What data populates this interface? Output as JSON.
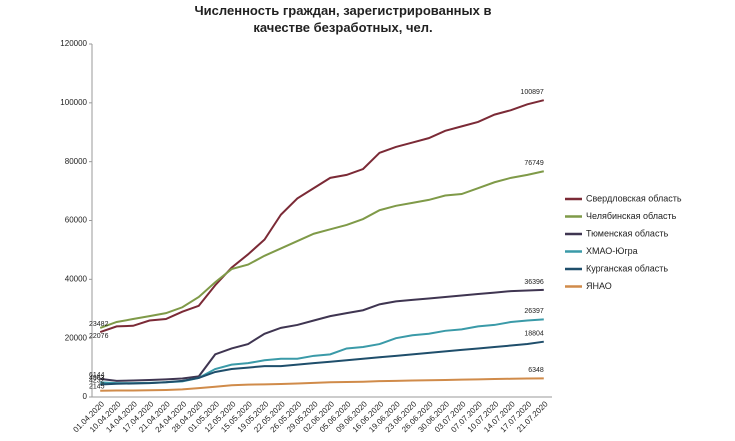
{
  "chart_data": {
    "type": "line",
    "title": "Численность граждан, зарегистрированных в качестве безработных, чел.",
    "categories": [
      "01.04.2020",
      "10.04.2020",
      "14.04.2020",
      "17.04.2020",
      "21.04.2020",
      "24.04.2020",
      "28.04.2020",
      "01.05.2020",
      "12.05.2020",
      "15.05.2020",
      "19.05.2020",
      "22.05.2020",
      "26.05.2020",
      "29.05.2020",
      "02.06.2020",
      "05.06.2020",
      "09.06.2020",
      "16.06.2020",
      "19.06.2020",
      "23.06.2020",
      "26.06.2020",
      "30.06.2020",
      "03.07.2020",
      "07.07.2020",
      "10.07.2020",
      "14.07.2020",
      "17.07.2020",
      "21.07.2020"
    ],
    "series": [
      {
        "name": "Свердловская область",
        "color": "#7b2a36",
        "values": [
          22076,
          24000,
          24200,
          26000,
          26500,
          29000,
          31000,
          38000,
          44000,
          48500,
          53500,
          62000,
          67500,
          71000,
          74500,
          75500,
          77500,
          83000,
          85000,
          86500,
          88000,
          90500,
          92000,
          93500,
          96000,
          97500,
          99500,
          100897
        ]
      },
      {
        "name": "Челябинская область",
        "color": "#7f9a48",
        "values": [
          23482,
          25500,
          26500,
          27500,
          28500,
          30500,
          34000,
          39000,
          43500,
          45000,
          48000,
          50500,
          53000,
          55500,
          57000,
          58500,
          60500,
          63500,
          65000,
          66000,
          67000,
          68500,
          69000,
          71000,
          73000,
          74500,
          75500,
          76749
        ]
      },
      {
        "name": "Тюменская область",
        "color": "#3f3551",
        "values": [
          6144,
          5500,
          5600,
          5800,
          6000,
          6300,
          7000,
          14500,
          16500,
          18000,
          21500,
          23500,
          24500,
          26000,
          27500,
          28500,
          29500,
          31500,
          32500,
          33000,
          33500,
          34000,
          34500,
          35000,
          35500,
          36000,
          36200,
          36396
        ]
      },
      {
        "name": "ХМАО-Югра",
        "color": "#3a9aa8",
        "values": [
          4963,
          4700,
          4700,
          4800,
          5000,
          5300,
          6500,
          9500,
          11000,
          11500,
          12500,
          13000,
          13000,
          14000,
          14500,
          16500,
          17000,
          18000,
          20000,
          21000,
          21500,
          22500,
          23000,
          24000,
          24500,
          25500,
          26000,
          26397
        ]
      },
      {
        "name": "Курганская область",
        "color": "#1f4e6b",
        "values": [
          4232,
          4500,
          4600,
          4700,
          5000,
          5500,
          6500,
          8500,
          9500,
          10000,
          10500,
          10500,
          11000,
          11500,
          12000,
          12500,
          13000,
          13500,
          14000,
          14500,
          15000,
          15500,
          16000,
          16500,
          17000,
          17500,
          18000,
          18804
        ]
      },
      {
        "name": "ЯНАО",
        "color": "#d08b4a",
        "values": [
          2145,
          2200,
          2200,
          2300,
          2400,
          2600,
          3000,
          3500,
          4000,
          4200,
          4300,
          4400,
          4600,
          4800,
          5000,
          5100,
          5200,
          5400,
          5500,
          5600,
          5700,
          5800,
          5900,
          6000,
          6100,
          6200,
          6300,
          6348
        ]
      }
    ],
    "ylim": [
      0,
      120000
    ],
    "yticks": [
      0,
      20000,
      40000,
      60000,
      80000,
      100000,
      120000
    ],
    "grid": false,
    "legend": "right"
  }
}
